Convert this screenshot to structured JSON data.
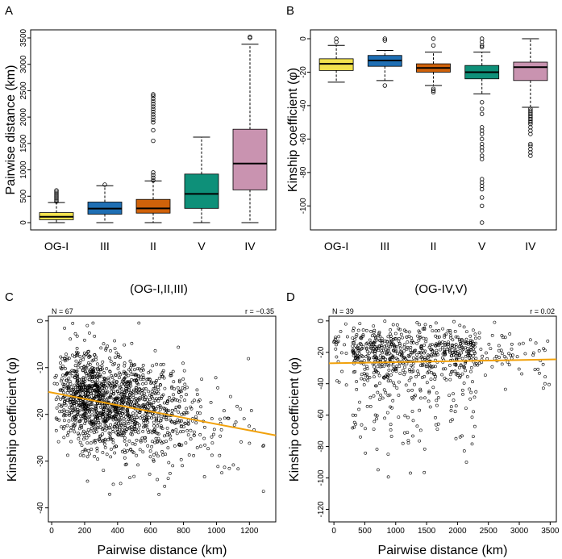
{
  "colors": {
    "OG-I": "#f2e24e",
    "III": "#1f6fb4",
    "II": "#d0620a",
    "V": "#0e9079",
    "IV": "#c993b0",
    "regression": "#f1a10b"
  },
  "chart_data": [
    {
      "panel": "A",
      "type": "box",
      "ylabel": "Pairwise distance (km)",
      "ylim": [
        0,
        3500
      ],
      "yticks": [
        0,
        500,
        1000,
        1500,
        2000,
        2500,
        3000,
        3500
      ],
      "categories": [
        "OG-I",
        "III",
        "II",
        "V",
        "IV"
      ],
      "boxes": [
        {
          "group": "OG-I",
          "min": 0,
          "q1": 55,
          "median": 110,
          "q3": 190,
          "max": 380,
          "outliers": [
            400,
            430,
            460,
            490,
            520,
            550,
            580,
            610
          ]
        },
        {
          "group": "III",
          "min": 0,
          "q1": 160,
          "median": 265,
          "q3": 390,
          "max": 700,
          "outliers": [
            720
          ]
        },
        {
          "group": "II",
          "min": 0,
          "q1": 180,
          "median": 270,
          "q3": 440,
          "max": 790,
          "outliers": [
            800,
            850,
            900,
            950,
            1550,
            1750,
            1900,
            1950,
            2000,
            2050,
            2100,
            2150,
            2200,
            2250,
            2300,
            2350,
            2400,
            2430
          ]
        },
        {
          "group": "V",
          "min": 0,
          "q1": 270,
          "median": 545,
          "q3": 920,
          "max": 1620,
          "outliers": []
        },
        {
          "group": "IV",
          "min": 0,
          "q1": 620,
          "median": 1120,
          "q3": 1770,
          "max": 3380,
          "outliers": [
            3500,
            3520
          ]
        }
      ]
    },
    {
      "panel": "B",
      "type": "box",
      "ylabel": "Kinship coefficient (φ)",
      "ylim": [
        -110,
        0
      ],
      "yticks": [
        0,
        -20,
        -40,
        -60,
        -80,
        -100
      ],
      "categories": [
        "OG-I",
        "III",
        "II",
        "V",
        "IV"
      ],
      "boxes": [
        {
          "group": "OG-I",
          "min": -26,
          "q1": -19,
          "median": -15,
          "q3": -12,
          "max": -4,
          "outliers": [
            0,
            -2
          ]
        },
        {
          "group": "III",
          "min": -25,
          "q1": -16.5,
          "median": -13,
          "q3": -10,
          "max": -7,
          "outliers": [
            0,
            -1,
            -28
          ]
        },
        {
          "group": "II",
          "min": -28,
          "q1": -20,
          "median": -17.5,
          "q3": -15,
          "max": -8,
          "outliers": [
            0,
            -4,
            -30,
            -31,
            -32
          ]
        },
        {
          "group": "V",
          "min": -33,
          "q1": -24,
          "median": -20,
          "q3": -16,
          "max": -8,
          "outliers": [
            0,
            -2,
            -4,
            -5,
            -38,
            -42,
            -45,
            -53,
            -55,
            -57,
            -60,
            -63,
            -65,
            -67,
            -70,
            -72,
            -84,
            -86,
            -88,
            -90,
            -95,
            -100,
            -110
          ]
        },
        {
          "group": "IV",
          "min": -41,
          "q1": -25,
          "median": -17,
          "q3": -14,
          "max": 0,
          "outliers": [
            -42,
            -43,
            -44,
            -45,
            -46,
            -47,
            -48,
            -49,
            -50,
            -51,
            -53,
            -55,
            -57,
            -63,
            -64,
            -66,
            -68,
            -70
          ]
        }
      ]
    },
    {
      "panel": "C",
      "type": "scatter",
      "title": "(OG-I,II,III)",
      "n_label": "N =  67",
      "r_label": "r = −0.35",
      "xlabel": "Pairwise distance (km)",
      "ylabel": "Kinship coefficient (φ)",
      "xlim": [
        -20,
        1360
      ],
      "ylim": [
        -43,
        1
      ],
      "xticks": [
        0,
        200,
        400,
        600,
        800,
        1000,
        1200
      ],
      "yticks": [
        0,
        -10,
        -20,
        -30,
        -40
      ],
      "regression": {
        "x0": -20,
        "y0": -15.2,
        "x1": 1360,
        "y1": -24.5
      },
      "point_count": 1500
    },
    {
      "panel": "D",
      "type": "scatter",
      "title": "(OG-IV,V)",
      "n_label": "N =  39",
      "r_label": "r = 0.02",
      "xlabel": "Pairwise distance (km)",
      "ylabel": "Kinship coefficient (φ)",
      "xlim": [
        -80,
        3600
      ],
      "ylim": [
        -128,
        3
      ],
      "xticks": [
        0,
        500,
        1000,
        1500,
        2000,
        2500,
        3000,
        3500
      ],
      "yticks": [
        0,
        -20,
        -40,
        -60,
        -80,
        -100,
        -120
      ],
      "regression": {
        "x0": -80,
        "y0": -27,
        "x1": 3600,
        "y1": -24.5
      },
      "point_count": 800
    }
  ]
}
